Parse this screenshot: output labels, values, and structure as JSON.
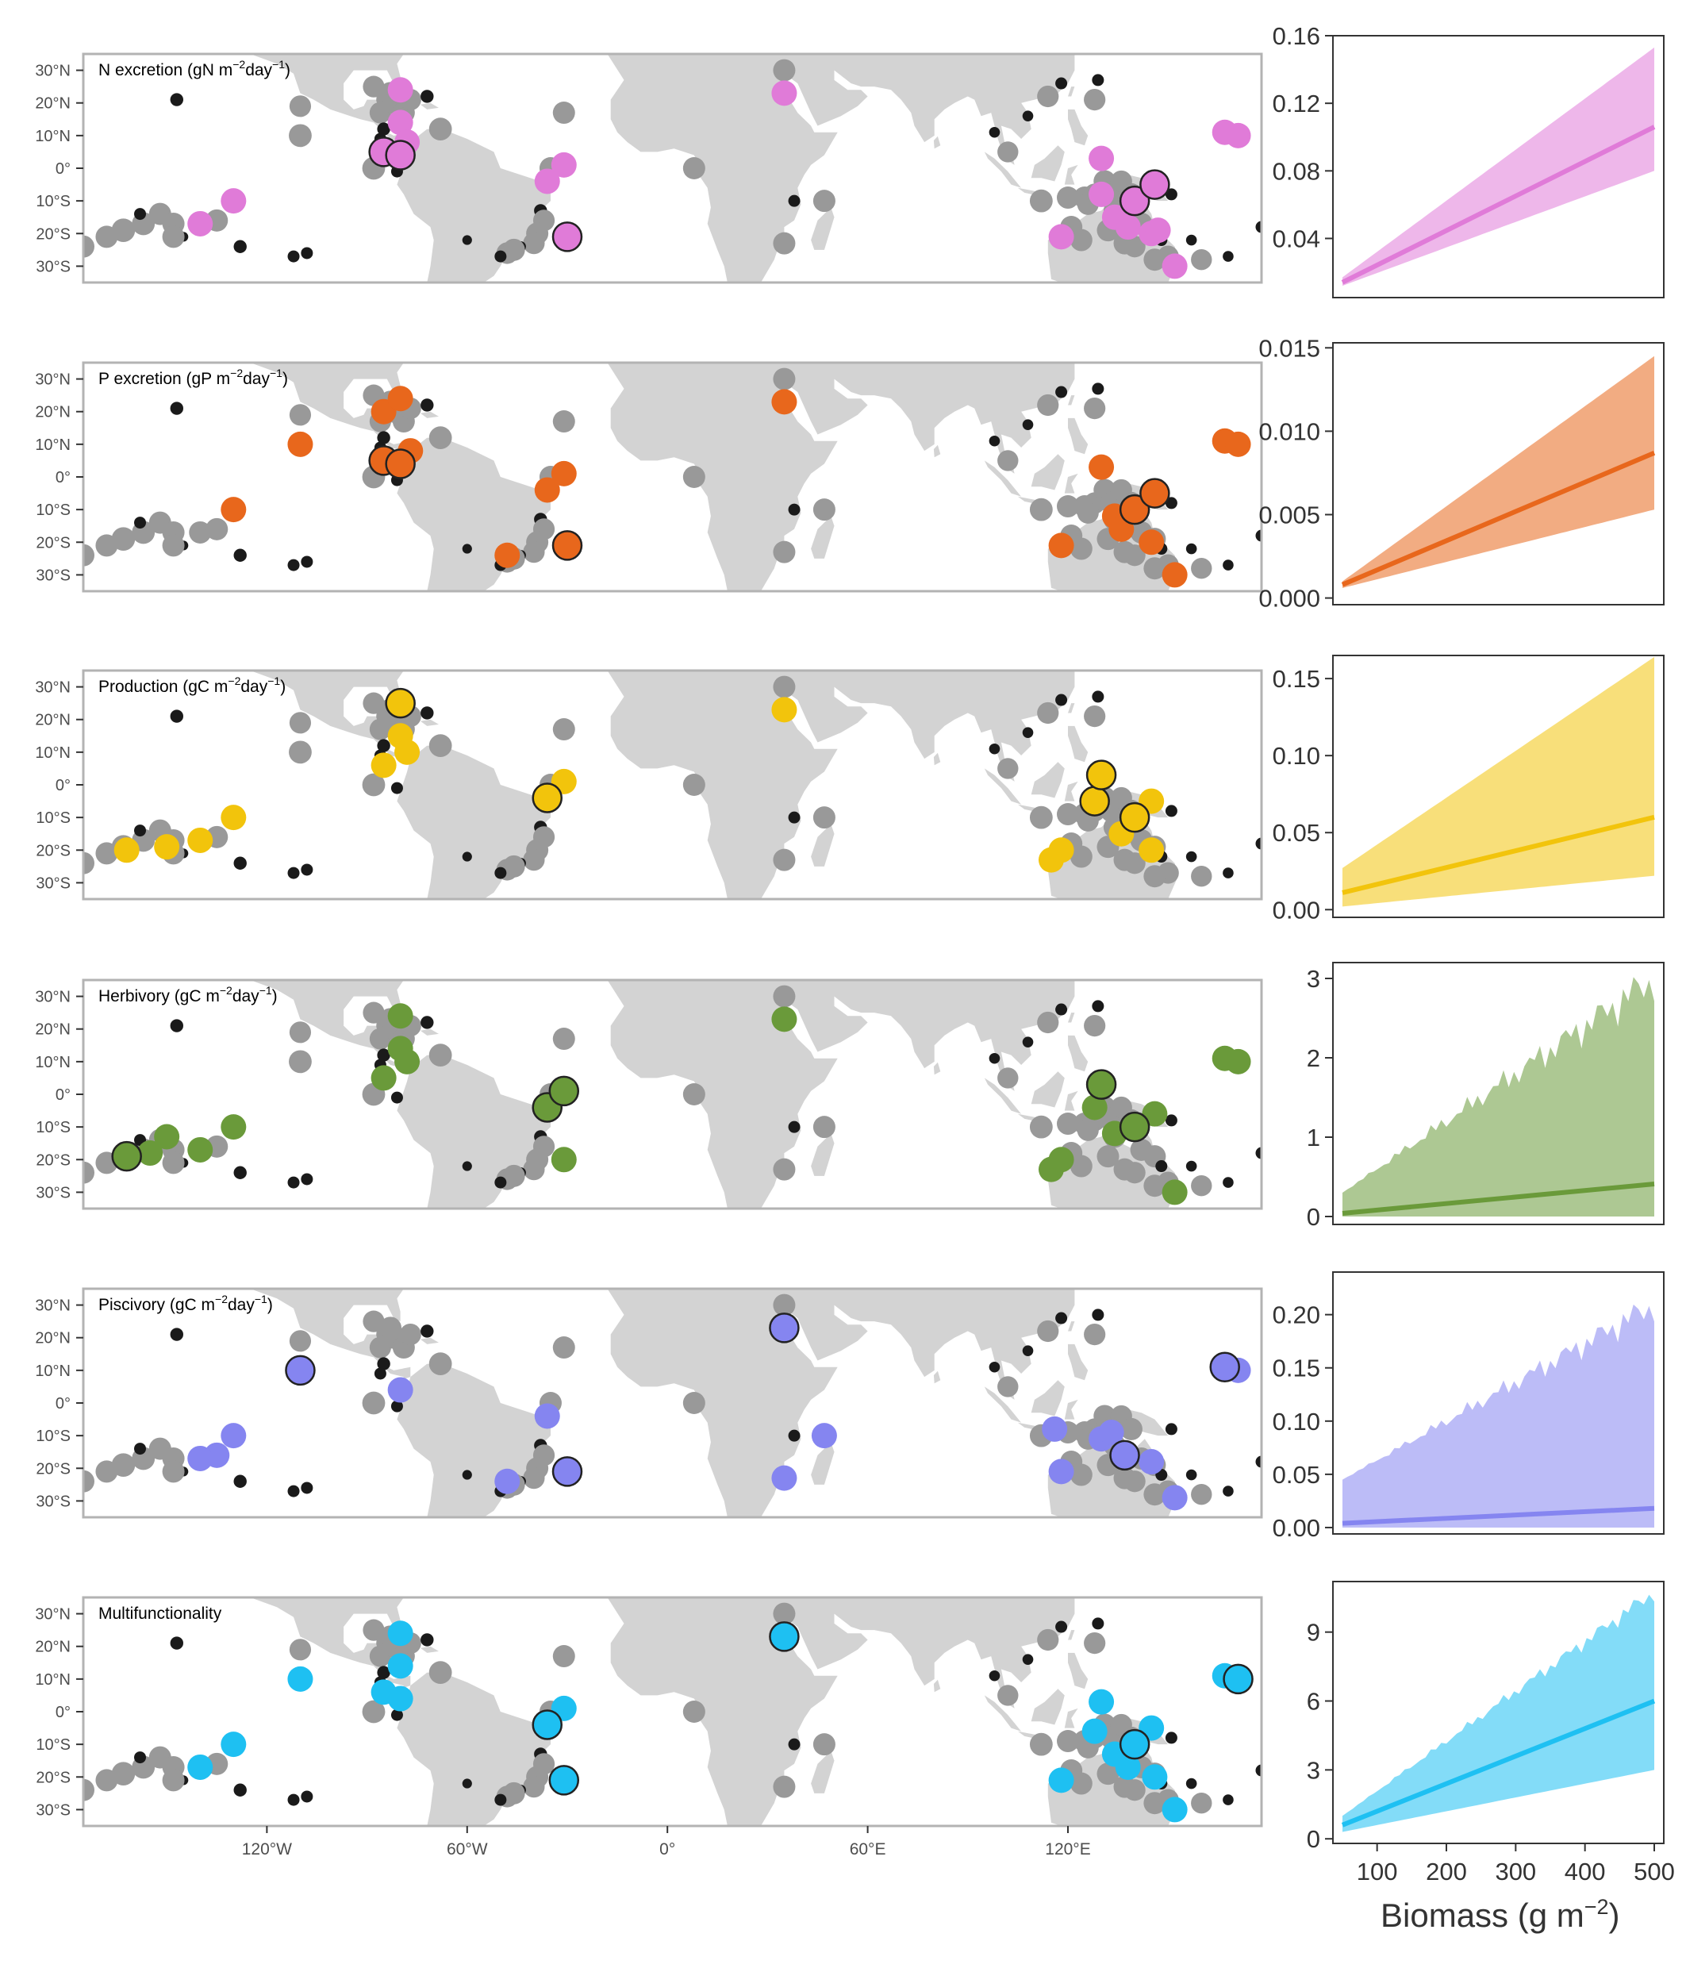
{
  "colors": {
    "land": "#d3d3d3",
    "frame": "#b3b3b3",
    "grey_point": "#999999",
    "black_point": "#1a1a1a",
    "circle_stroke": "#222222"
  },
  "map": {
    "lat_labels": [
      "30°N",
      "20°N",
      "10°N",
      "0°",
      "10°S",
      "20°S",
      "30°S"
    ],
    "lon_labels": [
      "120°W",
      "60°W",
      "0°",
      "60°E",
      "120°E"
    ]
  },
  "x_axis": {
    "title": "Biomass (g m",
    "title_sup": "−2",
    "title_close": ")",
    "ticks": [
      "100",
      "200",
      "300",
      "400",
      "500"
    ],
    "tick_values": [
      100,
      200,
      300,
      400,
      500
    ],
    "range": [
      50,
      500
    ]
  },
  "panels": [
    {
      "title": "N excretion (gN m",
      "title_sup": "−2",
      "title_mid": "day",
      "title_sup2": "−1",
      "title_close": ")",
      "color": "#e07bd8",
      "highlights": [
        {
          "lon": -85,
          "lat": 5
        },
        {
          "lon": -80,
          "lat": 4
        },
        {
          "lon": -30,
          "lat": -21
        },
        {
          "lon": 140,
          "lat": -10
        },
        {
          "lon": 146,
          "lat": -5
        }
      ],
      "colored": [
        {
          "lon": -80,
          "lat": 24
        },
        {
          "lon": -80,
          "lat": 14
        },
        {
          "lon": -78,
          "lat": 8
        },
        {
          "lon": -36,
          "lat": -4
        },
        {
          "lon": -31,
          "lat": 1
        },
        {
          "lon": 35,
          "lat": 23
        },
        {
          "lon": -140,
          "lat": -17
        },
        {
          "lon": -130,
          "lat": -10
        },
        {
          "lon": 118,
          "lat": -21
        },
        {
          "lon": 130,
          "lat": 3
        },
        {
          "lon": 130,
          "lat": -8
        },
        {
          "lon": 134,
          "lat": -15
        },
        {
          "lon": 138,
          "lat": -18
        },
        {
          "lon": 145,
          "lat": -20
        },
        {
          "lon": 147,
          "lat": -19
        },
        {
          "lon": 152,
          "lat": -30
        },
        {
          "lon": 167,
          "lat": 11
        },
        {
          "lon": 171,
          "lat": 10
        }
      ],
      "chart_data": {
        "type": "area",
        "title": "",
        "xlabel": "Biomass (g m−2)",
        "ylabel": "",
        "x": [
          50,
          500
        ],
        "line": [
          0.014,
          0.106
        ],
        "lower": [
          0.012,
          0.08
        ],
        "upper": [
          0.017,
          0.153
        ],
        "ylim": [
          0.005,
          0.16
        ],
        "ticks": [
          0.04,
          0.08,
          0.12,
          0.16
        ],
        "tick_labels": [
          "0.04",
          "0.08",
          "0.12",
          "0.16"
        ],
        "noise": 0
      }
    },
    {
      "title": "P excretion (gP m",
      "title_sup": "−2",
      "title_mid": "day",
      "title_sup2": "−1",
      "title_close": ")",
      "color": "#e8671c",
      "highlights": [
        {
          "lon": -85,
          "lat": 5
        },
        {
          "lon": -80,
          "lat": 4
        },
        {
          "lon": -30,
          "lat": -21
        },
        {
          "lon": 140,
          "lat": -10
        },
        {
          "lon": 146,
          "lat": -5
        }
      ],
      "colored": [
        {
          "lon": -110,
          "lat": 10
        },
        {
          "lon": -85,
          "lat": 20
        },
        {
          "lon": -80,
          "lat": 24
        },
        {
          "lon": -77,
          "lat": 8
        },
        {
          "lon": -36,
          "lat": -4
        },
        {
          "lon": -31,
          "lat": 1
        },
        {
          "lon": 35,
          "lat": 23
        },
        {
          "lon": -130,
          "lat": -10
        },
        {
          "lon": -48,
          "lat": -24
        },
        {
          "lon": 118,
          "lat": -21
        },
        {
          "lon": 130,
          "lat": 3
        },
        {
          "lon": 134,
          "lat": -12
        },
        {
          "lon": 136,
          "lat": -16
        },
        {
          "lon": 145,
          "lat": -20
        },
        {
          "lon": 152,
          "lat": -30
        },
        {
          "lon": 167,
          "lat": 11
        },
        {
          "lon": 171,
          "lat": 10
        }
      ],
      "chart_data": {
        "type": "area",
        "title": "",
        "xlabel": "Biomass (g m−2)",
        "ylabel": "",
        "x": [
          50,
          500
        ],
        "line": [
          0.0008,
          0.0087
        ],
        "lower": [
          0.0006,
          0.0053
        ],
        "upper": [
          0.001,
          0.0145
        ],
        "ylim": [
          -0.0004,
          0.0153
        ],
        "ticks": [
          0,
          0.005,
          0.01,
          0.015
        ],
        "tick_labels": [
          "0.000",
          "0.005",
          "0.010",
          "0.015"
        ],
        "noise": 0
      }
    },
    {
      "title": "Production (gC m",
      "title_sup": "−2",
      "title_mid": "day",
      "title_sup2": "−1",
      "title_close": ")",
      "color": "#f2c40c",
      "highlights": [
        {
          "lon": -80,
          "lat": 25
        },
        {
          "lon": -36,
          "lat": -4
        },
        {
          "lon": 128,
          "lat": -5
        },
        {
          "lon": 130,
          "lat": 3
        },
        {
          "lon": 140,
          "lat": -10
        }
      ],
      "colored": [
        {
          "lon": -80,
          "lat": 15
        },
        {
          "lon": -78,
          "lat": 10
        },
        {
          "lon": -85,
          "lat": 6
        },
        {
          "lon": -31,
          "lat": 1
        },
        {
          "lon": 35,
          "lat": 23
        },
        {
          "lon": -130,
          "lat": -10
        },
        {
          "lon": -140,
          "lat": -17
        },
        {
          "lon": -150,
          "lat": -19
        },
        {
          "lon": -162,
          "lat": -20
        },
        {
          "lon": 115,
          "lat": -23
        },
        {
          "lon": 118,
          "lat": -20
        },
        {
          "lon": 136,
          "lat": -15
        },
        {
          "lon": 145,
          "lat": -5
        },
        {
          "lon": 145,
          "lat": -20
        }
      ],
      "chart_data": {
        "type": "area",
        "title": "",
        "xlabel": "Biomass (g m−2)",
        "ylabel": "",
        "x": [
          50,
          500
        ],
        "line": [
          0.011,
          0.06
        ],
        "lower": [
          0.002,
          0.022
        ],
        "upper": [
          0.027,
          0.164
        ],
        "ylim": [
          -0.005,
          0.165
        ],
        "ticks": [
          0,
          0.05,
          0.1,
          0.15
        ],
        "tick_labels": [
          "0.00",
          "0.05",
          "0.10",
          "0.15"
        ],
        "noise": 0
      }
    },
    {
      "title": "Herbivory (gC m",
      "title_sup": "−2",
      "title_mid": "day",
      "title_sup2": "−1",
      "title_close": ")",
      "color": "#6a9a3a",
      "highlights": [
        {
          "lon": -162,
          "lat": -19
        },
        {
          "lon": -36,
          "lat": -4
        },
        {
          "lon": -31,
          "lat": 1
        },
        {
          "lon": 130,
          "lat": 3
        },
        {
          "lon": 140,
          "lat": -10
        }
      ],
      "colored": [
        {
          "lon": -80,
          "lat": 24
        },
        {
          "lon": -80,
          "lat": 14
        },
        {
          "lon": -78,
          "lat": 10
        },
        {
          "lon": -85,
          "lat": 5
        },
        {
          "lon": -130,
          "lat": -10
        },
        {
          "lon": -140,
          "lat": -17
        },
        {
          "lon": -150,
          "lat": -13
        },
        {
          "lon": -155,
          "lat": -18
        },
        {
          "lon": -31,
          "lat": -20
        },
        {
          "lon": 35,
          "lat": 23
        },
        {
          "lon": 115,
          "lat": -23
        },
        {
          "lon": 118,
          "lat": -20
        },
        {
          "lon": 128,
          "lat": -4
        },
        {
          "lon": 134,
          "lat": -12
        },
        {
          "lon": 146,
          "lat": -6
        },
        {
          "lon": 152,
          "lat": -30
        },
        {
          "lon": 167,
          "lat": 11
        },
        {
          "lon": 171,
          "lat": 10
        }
      ],
      "chart_data": {
        "type": "area",
        "title": "",
        "xlabel": "Biomass (g m−2)",
        "ylabel": "",
        "x": [
          50,
          500
        ],
        "line": [
          0.04,
          0.41
        ],
        "lower": [
          0,
          0
        ],
        "upper": [
          0.3,
          3.1
        ],
        "ylim": [
          -0.1,
          3.2
        ],
        "ticks": [
          0,
          1,
          2,
          3
        ],
        "tick_labels": [
          "0",
          "1",
          "2",
          "3"
        ],
        "noise": 0.12
      }
    },
    {
      "title": "Piscivory (gC m",
      "title_sup": "−2",
      "title_mid": "day",
      "title_sup2": "−1",
      "title_close": ")",
      "color": "#8585f0",
      "highlights": [
        {
          "lon": -110,
          "lat": 10
        },
        {
          "lon": -30,
          "lat": -21
        },
        {
          "lon": 35,
          "lat": 23
        },
        {
          "lon": 137,
          "lat": -16
        },
        {
          "lon": 167,
          "lat": 11
        }
      ],
      "colored": [
        {
          "lon": -80,
          "lat": 4
        },
        {
          "lon": -36,
          "lat": -4
        },
        {
          "lon": -48,
          "lat": -24
        },
        {
          "lon": 47,
          "lat": -10
        },
        {
          "lon": 35,
          "lat": -23
        },
        {
          "lon": -130,
          "lat": -10
        },
        {
          "lon": -135,
          "lat": -16
        },
        {
          "lon": -140,
          "lat": -17
        },
        {
          "lon": 116,
          "lat": -8
        },
        {
          "lon": 118,
          "lat": -21
        },
        {
          "lon": 130,
          "lat": -11
        },
        {
          "lon": 133,
          "lat": -9
        },
        {
          "lon": 145,
          "lat": -18
        },
        {
          "lon": 152,
          "lat": -29
        },
        {
          "lon": 171,
          "lat": 10
        }
      ],
      "chart_data": {
        "type": "area",
        "title": "",
        "xlabel": "Biomass (g m−2)",
        "ylabel": "",
        "x": [
          50,
          500
        ],
        "line": [
          0.004,
          0.018
        ],
        "lower": [
          0,
          0
        ],
        "upper": [
          0.045,
          0.215
        ],
        "ylim": [
          -0.006,
          0.24
        ],
        "ticks": [
          0,
          0.05,
          0.1,
          0.15,
          0.2
        ],
        "tick_labels": [
          "0.00",
          "0.05",
          "0.10",
          "0.15",
          "0.20"
        ],
        "noise": 0.11
      }
    },
    {
      "title": "Multifunctionality",
      "title_sup": "",
      "title_mid": "",
      "title_sup2": "",
      "title_close": "",
      "color": "#1ec0f2",
      "highlights": [
        {
          "lon": -36,
          "lat": -4
        },
        {
          "lon": -31,
          "lat": -21
        },
        {
          "lon": 35,
          "lat": 23
        },
        {
          "lon": 140,
          "lat": -10
        },
        {
          "lon": 171,
          "lat": 10
        }
      ],
      "colored": [
        {
          "lon": -80,
          "lat": 24
        },
        {
          "lon": -80,
          "lat": 14
        },
        {
          "lon": -85,
          "lat": 6
        },
        {
          "lon": -80,
          "lat": 4
        },
        {
          "lon": -110,
          "lat": 10
        },
        {
          "lon": -31,
          "lat": 1
        },
        {
          "lon": -130,
          "lat": -10
        },
        {
          "lon": -140,
          "lat": -17
        },
        {
          "lon": 118,
          "lat": -21
        },
        {
          "lon": 130,
          "lat": 3
        },
        {
          "lon": 128,
          "lat": -6
        },
        {
          "lon": 134,
          "lat": -13
        },
        {
          "lon": 138,
          "lat": -17
        },
        {
          "lon": 145,
          "lat": -5
        },
        {
          "lon": 146,
          "lat": -20
        },
        {
          "lon": 152,
          "lat": -30
        },
        {
          "lon": 167,
          "lat": 11
        }
      ],
      "chart_data": {
        "type": "area",
        "title": "",
        "xlabel": "Biomass (g m−2)",
        "ylabel": "",
        "x": [
          50,
          500
        ],
        "line": [
          0.6,
          6.0
        ],
        "lower": [
          0.3,
          3.0
        ],
        "upper": [
          1.0,
          10.9
        ],
        "ylim": [
          -0.2,
          11.2
        ],
        "ticks": [
          0,
          3,
          6,
          9
        ],
        "tick_labels": [
          "0",
          "3",
          "6",
          "9"
        ],
        "noise": 0.05
      }
    }
  ]
}
